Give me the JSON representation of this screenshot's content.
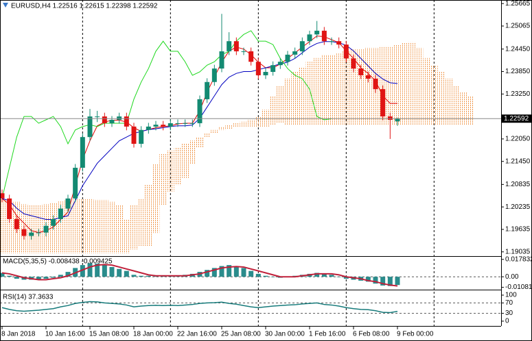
{
  "chart_data": [
    {
      "type": "candlestick",
      "title": "EURUSD,H4  1.22516 1.22615 1.22398 1.22592",
      "categories": [
        "8 Jan 2018",
        null,
        null,
        null,
        null,
        null,
        "10 Jan 16:00",
        null,
        null,
        null,
        null,
        null,
        "15 Jan 08:00",
        null,
        null,
        null,
        null,
        null,
        "18 Jan 00:00",
        null,
        null,
        null,
        null,
        null,
        "22 Jan 16:00",
        null,
        null,
        null,
        null,
        null,
        "25 Jan 08:00",
        null,
        null,
        null,
        null,
        null,
        "30 Jan 00:00",
        null,
        null,
        null,
        null,
        null,
        "1 Feb 16:00",
        null,
        null,
        null,
        null,
        null,
        "6 Feb 08:00",
        null,
        null,
        null,
        null,
        null,
        "9 Feb 00:00",
        null,
        null,
        null,
        null,
        null,
        null,
        null,
        null,
        null,
        null
      ],
      "open": [
        1.206,
        1.2046,
        1.1991,
        1.1964,
        1.1946,
        1.1955,
        1.1955,
        1.1973,
        1.1991,
        1.2019,
        1.2046,
        1.2128,
        1.221,
        1.2265,
        1.2265,
        1.2247,
        1.2256,
        1.2265,
        1.2238,
        1.2192,
        1.2229,
        1.2238,
        1.2243,
        1.2238,
        1.2247,
        1.2247,
        1.2247,
        1.2247,
        1.2311,
        1.2357,
        1.2393,
        1.2439,
        1.2466,
        1.2439,
        1.2439,
        1.2411,
        1.2375,
        1.2384,
        1.2402,
        1.2411,
        1.243,
        1.2439,
        1.2466,
        1.2484,
        1.2494,
        1.2466,
        1.2466,
        1.2457,
        1.242,
        1.2393,
        1.2375,
        1.2366,
        1.2338,
        1.2265,
        1.2252,
        null,
        null,
        null,
        null,
        null,
        null,
        null,
        null,
        null,
        null
      ],
      "high": [
        1.207,
        1.2056,
        1.2001,
        1.1974,
        1.1965,
        1.1965,
        1.1983,
        1.2001,
        1.2029,
        1.2056,
        1.2138,
        1.222,
        1.2285,
        1.228,
        1.2275,
        1.2266,
        1.2275,
        1.2275,
        1.2248,
        1.2239,
        1.2248,
        1.2253,
        1.2253,
        1.2257,
        1.2257,
        1.2257,
        1.2257,
        1.2321,
        1.2367,
        1.2403,
        1.2539,
        1.249,
        1.2476,
        1.2449,
        1.2449,
        1.2421,
        1.2394,
        1.2412,
        1.2421,
        1.244,
        1.2449,
        1.2476,
        1.2494,
        1.252,
        1.2504,
        1.2476,
        1.2476,
        1.2467,
        1.243,
        1.2403,
        1.2385,
        1.2376,
        1.2348,
        1.2275,
        1.2262,
        null,
        null,
        null,
        null,
        null,
        null,
        null,
        null,
        null,
        null
      ],
      "low": [
        1.2036,
        1.1981,
        1.1954,
        1.1936,
        1.1936,
        1.1945,
        1.1945,
        1.1963,
        1.1981,
        1.2009,
        1.2036,
        1.2118,
        1.22,
        1.225,
        1.2237,
        1.2237,
        1.2246,
        1.2228,
        1.2182,
        1.2182,
        1.2219,
        1.2228,
        1.2228,
        1.2228,
        1.2237,
        1.2237,
        1.2237,
        1.2237,
        1.2301,
        1.2347,
        1.2383,
        1.2429,
        1.2429,
        1.2429,
        1.2401,
        1.2365,
        1.2365,
        1.2374,
        1.2392,
        1.2401,
        1.242,
        1.2429,
        1.2456,
        1.2474,
        1.2456,
        1.2456,
        1.2447,
        1.241,
        1.2383,
        1.2365,
        1.2356,
        1.2328,
        1.2255,
        1.2205,
        1.224,
        null,
        null,
        null,
        null,
        null,
        null,
        null,
        null,
        null,
        null
      ],
      "close": [
        1.2046,
        1.1991,
        1.1964,
        1.1946,
        1.1955,
        1.1955,
        1.1973,
        1.1991,
        1.2019,
        1.2046,
        1.2128,
        1.221,
        1.2265,
        1.2265,
        1.2247,
        1.2256,
        1.2265,
        1.2238,
        1.2192,
        1.2229,
        1.2238,
        1.2243,
        1.2238,
        1.2247,
        1.2247,
        1.2247,
        1.2247,
        1.2311,
        1.2357,
        1.2393,
        1.2439,
        1.2466,
        1.2439,
        1.2439,
        1.2411,
        1.2375,
        1.2384,
        1.2402,
        1.2411,
        1.243,
        1.2439,
        1.2466,
        1.2484,
        1.2494,
        1.2466,
        1.2466,
        1.2457,
        1.242,
        1.2393,
        1.2375,
        1.2366,
        1.2338,
        1.2265,
        1.2256,
        1.2259,
        null,
        null,
        null,
        null,
        null,
        null,
        null,
        null,
        null,
        null
      ],
      "up_color": "#138a72",
      "down_color": "#e01414",
      "lines": [
        {
          "color": "#e00000",
          "values": [
            1.2046,
            1.203,
            1.2,
            1.198,
            1.196,
            1.1955,
            1.196,
            1.197,
            1.199,
            1.201,
            1.208,
            1.215,
            1.22,
            1.224,
            1.225,
            1.2255,
            1.2255,
            1.225,
            1.2235,
            1.2225,
            1.223,
            1.2235,
            1.2238,
            1.224,
            1.2245,
            1.2247,
            1.2247,
            1.228,
            1.233,
            1.237,
            1.241,
            1.244,
            1.245,
            1.2445,
            1.243,
            1.241,
            1.2395,
            1.2395,
            1.2405,
            1.242,
            1.2435,
            1.245,
            1.2465,
            1.248,
            1.2478,
            1.247,
            1.2462,
            1.244,
            1.242,
            1.2395,
            1.238,
            1.236,
            1.232,
            1.23,
            1.23,
            null,
            null,
            null,
            null,
            null,
            null,
            null,
            null,
            null,
            null
          ]
        },
        {
          "color": "#0000c0",
          "values": [
            1.2046,
            1.204,
            1.202,
            1.2005,
            1.2,
            1.1995,
            1.199,
            1.199,
            1.1995,
            1.2,
            1.204,
            1.208,
            1.211,
            1.214,
            1.216,
            1.218,
            1.22,
            1.221,
            1.222,
            1.2225,
            1.223,
            1.2232,
            1.2235,
            1.2238,
            1.224,
            1.224,
            1.2242,
            1.226,
            1.229,
            1.232,
            1.235,
            1.237,
            1.238,
            1.2385,
            1.2385,
            1.239,
            1.2395,
            1.24,
            1.2405,
            1.241,
            1.242,
            1.2435,
            1.245,
            1.246,
            1.2465,
            1.2465,
            1.2462,
            1.2455,
            1.244,
            1.242,
            1.24,
            1.238,
            1.2365,
            1.2355,
            1.2353,
            null,
            null,
            null,
            null,
            null,
            null,
            null,
            null,
            null,
            null
          ]
        },
        {
          "color": "#1ed81e",
          "values": [
            1.2046,
            1.2128,
            1.221,
            1.2265,
            1.2265,
            1.2247,
            1.2256,
            1.2265,
            1.2238,
            1.2192,
            1.2229,
            1.2238,
            1.2243,
            1.2238,
            1.2247,
            1.2247,
            1.2247,
            1.2247,
            1.2311,
            1.2357,
            1.2393,
            1.2439,
            1.2466,
            1.2439,
            1.2439,
            1.2411,
            1.2375,
            1.2384,
            1.2402,
            1.2411,
            1.243,
            1.2439,
            1.2466,
            1.2484,
            1.2494,
            1.2466,
            1.2466,
            1.2457,
            1.242,
            1.2393,
            1.2375,
            1.2366,
            1.2338,
            1.2265,
            1.2256,
            1.2259,
            null,
            null,
            null,
            null,
            null,
            null,
            null,
            null,
            null,
            null,
            null,
            null,
            null,
            null,
            null,
            null,
            null,
            null,
            null
          ]
        }
      ],
      "cloud": {
        "color": "#f09a50",
        "upper": [
          1.2046,
          1.2042,
          1.2037,
          1.2031,
          1.2028,
          1.2028,
          1.2031,
          1.2035,
          1.2038,
          1.2042,
          1.2046,
          1.2046,
          1.2046,
          1.2042,
          1.2042,
          1.2037,
          1.2028,
          1.1991,
          1.2028,
          1.2046,
          1.2082,
          1.2137,
          1.2165,
          1.2174,
          1.2183,
          1.2192,
          1.2201,
          1.221,
          1.222,
          1.2229,
          1.2238,
          1.2243,
          1.2247,
          1.2251,
          1.2256,
          1.2265,
          1.2283,
          1.232,
          1.2347,
          1.2366,
          1.2384,
          1.2397,
          1.2411,
          1.2421,
          1.243,
          1.243,
          1.2433,
          1.2439,
          1.2444,
          1.2444,
          1.2448,
          1.2448,
          1.2452,
          1.2452,
          1.2457,
          1.2461,
          1.2463,
          1.2448,
          1.2421,
          1.2402,
          1.2384,
          1.2366,
          1.2347,
          1.2329,
          1.232
        ],
        "lower": [
          1.19,
          1.19,
          1.19,
          1.19,
          1.19,
          1.19,
          1.19,
          1.19,
          1.19,
          1.19,
          1.19,
          1.19,
          1.19,
          1.19,
          1.19,
          1.19,
          1.19,
          1.19,
          1.191,
          1.1918,
          1.1918,
          1.1954,
          1.2028,
          1.2064,
          1.2082,
          1.2101,
          1.2137,
          1.2183,
          1.221,
          1.222,
          1.2229,
          1.2232,
          1.2236,
          1.2238,
          1.2238,
          1.2238,
          1.2238,
          1.2243,
          1.2247,
          1.2243,
          1.2243,
          1.2243,
          1.2243,
          1.2243,
          1.2243,
          1.2243,
          1.2243,
          1.2243,
          1.2243,
          1.2243,
          1.2243,
          1.2243,
          1.2243,
          1.2243,
          1.2243,
          1.2243,
          1.2243,
          1.2243,
          1.2243,
          1.2243,
          1.2243,
          1.2243,
          1.2243,
          1.2243,
          1.2243
        ]
      },
      "last_price": 1.22592,
      "grid": true,
      "ylim": [
        1.1894,
        1.2576
      ],
      "yticks": [
        1.25665,
        1.25065,
        {
          "value": 1.2445,
          "label": "1.24450"
        },
        {
          "value": 1.2385,
          "label": "1.23850"
        },
        {
          "value": 1.2325,
          "label": "1.23250"
        },
        {
          "value": 1.2205,
          "label": "1.22050"
        },
        {
          "value": 1.2145,
          "label": "1.21450"
        },
        1.20835,
        1.20235,
        1.19635,
        1.19035
      ]
    },
    {
      "type": "macd",
      "title": "MACD(5,35,5) -0.008438 -0.009425",
      "values": [
        0.004,
        0.001,
        -0.002,
        -0.003,
        -0.003,
        -0.003,
        -0.002,
        -0.001,
        0.002,
        0.005,
        0.009,
        0.012,
        0.014,
        0.0135,
        0.012,
        0.01,
        0.008,
        0.006,
        0.002,
        0.001,
        0.001,
        0.001,
        0.001,
        0.001,
        0.001,
        0.002,
        0.003,
        0.005,
        0.007,
        0.009,
        0.011,
        0.012,
        0.011,
        0.009,
        0.006,
        0.003,
        0.001,
        0,
        -0.001,
        0,
        0.001,
        0.002,
        0.003,
        0.004,
        0.003,
        0.002,
        0,
        -0.002,
        -0.003,
        -0.004,
        -0.005,
        -0.007,
        -0.009,
        -0.0095,
        -0.008438
      ],
      "color": "#2a8c8c",
      "signal": [
        0.004,
        0.003,
        0.001,
        -0.001,
        -0.002,
        -0.003,
        -0.003,
        -0.002,
        -0.001,
        0.001,
        0.004,
        0.007,
        0.01,
        0.012,
        0.0125,
        0.012,
        0.01,
        0.008,
        0.006,
        0.004,
        0.002,
        0.001,
        0.001,
        0.001,
        0.001,
        0.001,
        0.002,
        0.003,
        0.005,
        0.007,
        0.009,
        0.01,
        0.0105,
        0.01,
        0.008,
        0.006,
        0.004,
        0.002,
        0,
        0,
        0,
        0.001,
        0.002,
        0.003,
        0.003,
        0.003,
        0.002,
        0,
        -0.001,
        -0.002,
        -0.004,
        -0.005,
        -0.007,
        -0.0085,
        -0.009425
      ],
      "signal_color": "#c0203a",
      "levels": [
        0
      ],
      "ylim": [
        -0.0125,
        0.0198
      ],
      "yticks": [
        0.017832,
        {
          "value": 0,
          "label": "0.00"
        },
        -0.010819
      ]
    },
    {
      "type": "line",
      "title": "RSI(14) 37.3633",
      "values": [
        52,
        45,
        40,
        38,
        40,
        42,
        45,
        48,
        55,
        60,
        68,
        72,
        75,
        74,
        70,
        68,
        66,
        62,
        55,
        58,
        60,
        61,
        60,
        61,
        60,
        62,
        64,
        68,
        70,
        71,
        73,
        68,
        65,
        60,
        55,
        52,
        55,
        58,
        60,
        62,
        63,
        66,
        68,
        70,
        64,
        62,
        58,
        52,
        48,
        45,
        44,
        40,
        34,
        33,
        37.3633
      ],
      "color": "#157a7a",
      "levels": [
        70,
        30
      ],
      "ylim": [
        0,
        100
      ],
      "yticks": [
        100,
        70,
        30,
        0
      ]
    }
  ]
}
